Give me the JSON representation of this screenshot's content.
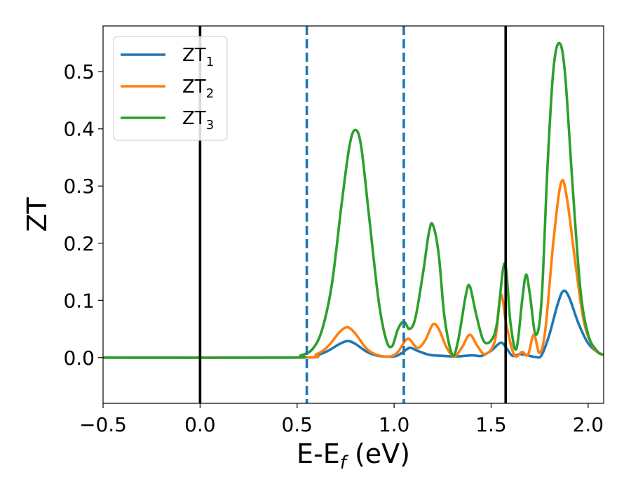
{
  "chart_data": {
    "type": "line",
    "xlabel": {
      "main": "E-E",
      "sub": "f",
      "tail": " (eV)"
    },
    "ylabel": "ZT",
    "xlim": [
      -0.5,
      2.08
    ],
    "ylim": [
      -0.08,
      0.58
    ],
    "xticks": [
      -0.5,
      0.0,
      0.5,
      1.0,
      1.5,
      2.0
    ],
    "xtick_labels": [
      "−0.5",
      "0.0",
      "0.5",
      "1.0",
      "1.5",
      "2.0"
    ],
    "yticks": [
      0.0,
      0.1,
      0.2,
      0.3,
      0.4,
      0.5
    ],
    "ytick_labels": [
      "0.0",
      "0.1",
      "0.2",
      "0.3",
      "0.4",
      "0.5"
    ],
    "grid": false,
    "legend_position": "upper-left",
    "vlines": [
      {
        "x": 0.0,
        "style": "solid",
        "color": "#000000"
      },
      {
        "x": 0.55,
        "style": "dashed",
        "color": "#1f77b4"
      },
      {
        "x": 1.05,
        "style": "dashed",
        "color": "#1f77b4"
      },
      {
        "x": 1.575,
        "style": "solid",
        "color": "#000000"
      }
    ],
    "series": [
      {
        "name": "ZT",
        "sub": "1",
        "color": "#1f77b4",
        "points": [
          [
            -0.5,
            0.0
          ],
          [
            0.5,
            0.0
          ],
          [
            0.6,
            0.004
          ],
          [
            0.66,
            0.012
          ],
          [
            0.72,
            0.024
          ],
          [
            0.76,
            0.029
          ],
          [
            0.8,
            0.024
          ],
          [
            0.86,
            0.01
          ],
          [
            0.92,
            0.003
          ],
          [
            1.0,
            0.002
          ],
          [
            1.04,
            0.008
          ],
          [
            1.08,
            0.017
          ],
          [
            1.12,
            0.012
          ],
          [
            1.18,
            0.005
          ],
          [
            1.25,
            0.003
          ],
          [
            1.32,
            0.002
          ],
          [
            1.4,
            0.004
          ],
          [
            1.45,
            0.003
          ],
          [
            1.5,
            0.012
          ],
          [
            1.55,
            0.026
          ],
          [
            1.58,
            0.016
          ],
          [
            1.61,
            0.003
          ],
          [
            1.65,
            0.006
          ],
          [
            1.7,
            0.003
          ],
          [
            1.73,
            0.001
          ],
          [
            1.76,
            0.004
          ],
          [
            1.8,
            0.04
          ],
          [
            1.84,
            0.09
          ],
          [
            1.87,
            0.116
          ],
          [
            1.9,
            0.107
          ],
          [
            1.95,
            0.06
          ],
          [
            2.0,
            0.025
          ],
          [
            2.05,
            0.009
          ],
          [
            2.08,
            0.005
          ]
        ]
      },
      {
        "name": "ZT",
        "sub": "2",
        "color": "#ff7f0e",
        "points": [
          [
            -0.5,
            0.0
          ],
          [
            0.5,
            0.0
          ],
          [
            0.6,
            0.006
          ],
          [
            0.66,
            0.02
          ],
          [
            0.72,
            0.045
          ],
          [
            0.76,
            0.053
          ],
          [
            0.8,
            0.042
          ],
          [
            0.86,
            0.015
          ],
          [
            0.92,
            0.004
          ],
          [
            0.98,
            0.002
          ],
          [
            1.02,
            0.01
          ],
          [
            1.07,
            0.033
          ],
          [
            1.12,
            0.017
          ],
          [
            1.16,
            0.03
          ],
          [
            1.2,
            0.058
          ],
          [
            1.23,
            0.05
          ],
          [
            1.27,
            0.018
          ],
          [
            1.31,
            0.002
          ],
          [
            1.35,
            0.018
          ],
          [
            1.39,
            0.04
          ],
          [
            1.43,
            0.02
          ],
          [
            1.47,
            0.006
          ],
          [
            1.52,
            0.03
          ],
          [
            1.55,
            0.11
          ],
          [
            1.58,
            0.055
          ],
          [
            1.62,
            0.004
          ],
          [
            1.66,
            0.01
          ],
          [
            1.69,
            0.005
          ],
          [
            1.72,
            0.04
          ],
          [
            1.75,
            0.008
          ],
          [
            1.78,
            0.05
          ],
          [
            1.82,
            0.2
          ],
          [
            1.86,
            0.305
          ],
          [
            1.89,
            0.28
          ],
          [
            1.94,
            0.15
          ],
          [
            1.98,
            0.06
          ],
          [
            2.03,
            0.016
          ],
          [
            2.08,
            0.005
          ]
        ]
      },
      {
        "name": "ZT",
        "sub": "3",
        "color": "#2ca02c",
        "points": [
          [
            -0.5,
            0.0
          ],
          [
            0.45,
            0.0
          ],
          [
            0.52,
            0.004
          ],
          [
            0.58,
            0.015
          ],
          [
            0.63,
            0.05
          ],
          [
            0.68,
            0.13
          ],
          [
            0.73,
            0.27
          ],
          [
            0.77,
            0.37
          ],
          [
            0.8,
            0.398
          ],
          [
            0.83,
            0.37
          ],
          [
            0.87,
            0.25
          ],
          [
            0.92,
            0.1
          ],
          [
            0.96,
            0.03
          ],
          [
            0.99,
            0.02
          ],
          [
            1.02,
            0.05
          ],
          [
            1.05,
            0.063
          ],
          [
            1.08,
            0.05
          ],
          [
            1.11,
            0.07
          ],
          [
            1.15,
            0.15
          ],
          [
            1.18,
            0.22
          ],
          [
            1.2,
            0.232
          ],
          [
            1.23,
            0.18
          ],
          [
            1.26,
            0.07
          ],
          [
            1.3,
            0.005
          ],
          [
            1.33,
            0.03
          ],
          [
            1.37,
            0.11
          ],
          [
            1.39,
            0.125
          ],
          [
            1.42,
            0.08
          ],
          [
            1.46,
            0.03
          ],
          [
            1.5,
            0.03
          ],
          [
            1.53,
            0.06
          ],
          [
            1.57,
            0.165
          ],
          [
            1.6,
            0.06
          ],
          [
            1.63,
            0.015
          ],
          [
            1.66,
            0.1
          ],
          [
            1.68,
            0.145
          ],
          [
            1.7,
            0.11
          ],
          [
            1.73,
            0.04
          ],
          [
            1.76,
            0.1
          ],
          [
            1.79,
            0.33
          ],
          [
            1.82,
            0.5
          ],
          [
            1.85,
            0.55
          ],
          [
            1.88,
            0.5
          ],
          [
            1.92,
            0.3
          ],
          [
            1.96,
            0.12
          ],
          [
            2.0,
            0.04
          ],
          [
            2.05,
            0.01
          ],
          [
            2.08,
            0.005
          ]
        ]
      }
    ]
  }
}
